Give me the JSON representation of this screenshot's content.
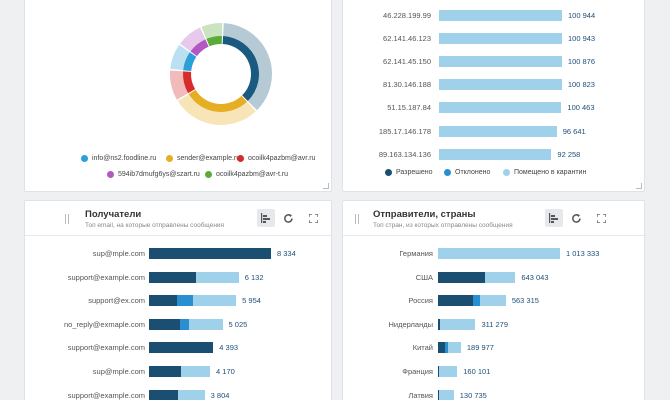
{
  "donut": {
    "legend": [
      {
        "label": "info@ns2.foodline.ru",
        "color": "#2a9fd8"
      },
      {
        "label": "sender@example.ru",
        "color": "#e6ae22"
      },
      {
        "label": "ocoilk4pazbm@avr.ru",
        "color": "#d82a2a"
      },
      {
        "label": "594ib7dmufg6ys@szart.ru",
        "color": "#b357c2"
      },
      {
        "label": "ocoilk4pazbm@avr-t.ru",
        "color": "#5aab3a"
      }
    ],
    "segments": [
      {
        "name": "navy",
        "value": 26,
        "color": "#1b5a80"
      },
      {
        "name": "gold",
        "value": 20,
        "color": "#e6ae22"
      },
      {
        "name": "red",
        "value": 7,
        "color": "#d82a2a"
      },
      {
        "name": "cyan",
        "value": 6,
        "color": "#2a9fd8"
      },
      {
        "name": "purple",
        "value": 6,
        "color": "#b357c2"
      },
      {
        "name": "green",
        "value": 5,
        "color": "#5aab3a"
      }
    ]
  },
  "ips": {
    "rows": [
      {
        "label": "46.228.199.99",
        "value": "100 944",
        "q": 100944
      },
      {
        "label": "62.141.46.123",
        "value": "100 943",
        "q": 100943
      },
      {
        "label": "62.141.45.150",
        "value": "100 876",
        "q": 100876
      },
      {
        "label": "81.30.146.188",
        "value": "100 823",
        "q": 100823
      },
      {
        "label": "51.15.187.84",
        "value": "100 463",
        "q": 100463
      },
      {
        "label": "185.17.146.178",
        "value": "96 641",
        "q": 96641
      },
      {
        "label": "89.163.134.136",
        "value": "92 258",
        "q": 92258
      }
    ],
    "legend": [
      {
        "label": "Разрешено",
        "color": "#1b4f72"
      },
      {
        "label": "Отклонено",
        "color": "#2a8fd0"
      },
      {
        "label": "Помещено в карантин",
        "color": "#9fd1ea"
      }
    ]
  },
  "recipients": {
    "title": "Получатели",
    "subtitle": "Топ email, на которые отправлены сообщения",
    "rows": [
      {
        "label": "sup@mple.com",
        "value": "8 334",
        "segs": [
          8334,
          0,
          0
        ]
      },
      {
        "label": "support@example.com",
        "value": "6 132",
        "segs": [
          3200,
          0,
          2932
        ]
      },
      {
        "label": "support@ex.com",
        "value": "5 954",
        "segs": [
          1900,
          1100,
          2954
        ]
      },
      {
        "label": "no_reply@exmaple.com",
        "value": "5 025",
        "segs": [
          2100,
          650,
          2275
        ]
      },
      {
        "label": "support@example.com",
        "value": "4 393",
        "segs": [
          4393,
          0,
          0
        ]
      },
      {
        "label": "sup@mple.com",
        "value": "4 170",
        "segs": [
          2200,
          0,
          1970
        ]
      },
      {
        "label": "support@example.com",
        "value": "3 804",
        "segs": [
          2000,
          0,
          1804
        ]
      }
    ]
  },
  "senders": {
    "title": "Отправители, страны",
    "subtitle": "Топ стран, из которых отправлены сообщения",
    "rows": [
      {
        "label": "Германия",
        "value": "1 013 333",
        "segs": [
          0,
          0,
          1013333
        ]
      },
      {
        "label": "США",
        "value": "643 043",
        "segs": [
          390000,
          0,
          253043
        ]
      },
      {
        "label": "Россия",
        "value": "563 315",
        "segs": [
          290000,
          60000,
          213315
        ]
      },
      {
        "label": "Нидерланды",
        "value": "311 279",
        "segs": [
          20000,
          0,
          291279
        ]
      },
      {
        "label": "Китай",
        "value": "189 977",
        "segs": [
          60000,
          20000,
          109977
        ]
      },
      {
        "label": "Франция",
        "value": "160 101",
        "segs": [
          10000,
          0,
          150101
        ]
      },
      {
        "label": "Латвия",
        "value": "130 735",
        "segs": [
          10000,
          0,
          120735
        ]
      }
    ]
  },
  "colors": {
    "allowed": "#1b4f72",
    "rejected": "#2a8fd0",
    "quarantine": "#9fd1ea"
  }
}
